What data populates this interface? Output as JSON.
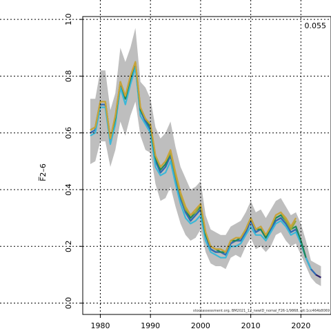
{
  "chart_data": {
    "type": "line",
    "title": "",
    "xlabel": "",
    "ylabel": "F̅2–6",
    "xlim": [
      1976.5,
      2026
    ],
    "ylim": [
      -0.04,
      1.01
    ],
    "x_ticks": [
      1980,
      1990,
      2000,
      2010,
      2020
    ],
    "y_ticks": [
      0.0,
      0.2,
      0.4,
      0.6,
      0.8,
      1.0
    ],
    "x_tick_labels": [
      "1980",
      "1990",
      "2000",
      "2010",
      "2020"
    ],
    "y_tick_labels": [
      "0.0",
      "0.2",
      "0.4",
      "0.6",
      "0.8",
      "1.0"
    ],
    "grid": true,
    "corner_value": "0.055",
    "source_text": "stockassessment.org, BM2021_12_newID_nomal_F26-1/9868, git:1cc464b8069",
    "band": {
      "color": "#bebebe",
      "x": [
        1978,
        1979,
        1980,
        1981,
        1982,
        1983,
        1984,
        1985,
        1986,
        1987,
        1988,
        1989,
        1990,
        1991,
        1992,
        1993,
        1994,
        1995,
        1996,
        1997,
        1998,
        1999,
        2000,
        2001,
        2002,
        2003,
        2004,
        2005,
        2006,
        2007,
        2008,
        2009,
        2010,
        2011,
        2012,
        2013,
        2014,
        2015,
        2016,
        2017,
        2018,
        2019,
        2020,
        2021,
        2022,
        2023,
        2024
      ],
      "upper": [
        0.72,
        0.72,
        0.82,
        0.82,
        0.68,
        0.74,
        0.9,
        0.85,
        0.9,
        0.97,
        0.78,
        0.76,
        0.72,
        0.62,
        0.58,
        0.6,
        0.64,
        0.55,
        0.48,
        0.44,
        0.4,
        0.41,
        0.43,
        0.31,
        0.26,
        0.25,
        0.24,
        0.24,
        0.27,
        0.28,
        0.29,
        0.32,
        0.36,
        0.32,
        0.33,
        0.3,
        0.33,
        0.36,
        0.37,
        0.34,
        0.31,
        0.32,
        0.28,
        0.22,
        0.15,
        0.14,
        0.13
      ],
      "lower": [
        0.49,
        0.5,
        0.57,
        0.57,
        0.48,
        0.54,
        0.64,
        0.59,
        0.66,
        0.71,
        0.59,
        0.54,
        0.53,
        0.42,
        0.36,
        0.37,
        0.41,
        0.34,
        0.28,
        0.24,
        0.22,
        0.23,
        0.26,
        0.18,
        0.14,
        0.13,
        0.13,
        0.12,
        0.16,
        0.17,
        0.16,
        0.2,
        0.23,
        0.19,
        0.2,
        0.18,
        0.2,
        0.24,
        0.25,
        0.22,
        0.2,
        0.21,
        0.17,
        0.13,
        0.09,
        0.07,
        0.06
      ]
    },
    "series": [
      {
        "color": "#2b1d6a",
        "x": [
          1978,
          1979,
          1980,
          1981,
          1982,
          1983,
          1984,
          1985,
          1986,
          1987,
          1988,
          1989,
          1990,
          1991,
          1992,
          1993,
          1994,
          1995,
          1996,
          1997,
          1998,
          1999,
          2000,
          2001,
          2002,
          2003,
          2004,
          2005,
          2006,
          2007,
          2008,
          2009,
          2010,
          2011,
          2012,
          2013,
          2014,
          2015,
          2016,
          2017,
          2018,
          2019,
          2020,
          2021,
          2022,
          2023,
          2024
        ],
        "values": [
          0.6,
          0.61,
          0.7,
          0.7,
          0.57,
          0.64,
          0.77,
          0.72,
          0.78,
          0.84,
          0.68,
          0.64,
          0.62,
          0.51,
          0.46,
          0.48,
          0.52,
          0.44,
          0.37,
          0.32,
          0.29,
          0.31,
          0.33,
          0.24,
          0.19,
          0.18,
          0.18,
          0.17,
          0.21,
          0.22,
          0.22,
          0.25,
          0.29,
          0.25,
          0.26,
          0.23,
          0.26,
          0.29,
          0.3,
          0.28,
          0.25,
          0.26,
          0.22,
          0.16,
          0.12,
          0.1,
          0.09
        ]
      },
      {
        "color": "#2f6db5",
        "x": [
          1978,
          1979,
          1980,
          1981,
          1982,
          1983,
          1984,
          1985,
          1986,
          1987,
          1988,
          1989,
          1990,
          1991,
          1992,
          1993,
          1994,
          1995,
          1996,
          1997,
          1998,
          1999,
          2000,
          2001,
          2002,
          2003,
          2004,
          2005,
          2006,
          2007,
          2008,
          2009,
          2010,
          2011,
          2012,
          2013,
          2014,
          2015,
          2016,
          2017,
          2018,
          2019,
          2020,
          2021,
          2022,
          2023
        ],
        "values": [
          0.6,
          0.61,
          0.7,
          0.7,
          0.57,
          0.64,
          0.77,
          0.72,
          0.78,
          0.84,
          0.68,
          0.64,
          0.61,
          0.5,
          0.46,
          0.48,
          0.52,
          0.44,
          0.37,
          0.32,
          0.29,
          0.31,
          0.33,
          0.24,
          0.19,
          0.18,
          0.18,
          0.17,
          0.21,
          0.22,
          0.22,
          0.25,
          0.29,
          0.25,
          0.26,
          0.23,
          0.26,
          0.29,
          0.3,
          0.28,
          0.25,
          0.26,
          0.21,
          0.16,
          0.12,
          0.1
        ]
      },
      {
        "color": "#3ab8d8",
        "x": [
          1978,
          1979,
          1980,
          1981,
          1982,
          1983,
          1984,
          1985,
          1986,
          1987,
          1988,
          1989,
          1990,
          1991,
          1992,
          1993,
          1994,
          1995,
          1996,
          1997,
          1998,
          1999,
          2000,
          2001,
          2002,
          2003,
          2004,
          2005,
          2006,
          2007,
          2008,
          2009,
          2010,
          2011,
          2012,
          2013,
          2014,
          2015,
          2016,
          2017,
          2018,
          2019,
          2020,
          2021,
          2022
        ],
        "values": [
          0.59,
          0.6,
          0.69,
          0.69,
          0.56,
          0.63,
          0.76,
          0.7,
          0.77,
          0.83,
          0.66,
          0.63,
          0.6,
          0.48,
          0.45,
          0.46,
          0.5,
          0.42,
          0.35,
          0.3,
          0.28,
          0.29,
          0.31,
          0.22,
          0.18,
          0.17,
          0.16,
          0.16,
          0.2,
          0.2,
          0.21,
          0.24,
          0.27,
          0.24,
          0.24,
          0.22,
          0.25,
          0.28,
          0.29,
          0.27,
          0.24,
          0.25,
          0.21,
          0.16,
          0.12
        ]
      },
      {
        "color": "#1d8a5a",
        "x": [
          1978,
          1979,
          1980,
          1981,
          1982,
          1983,
          1984,
          1985,
          1986,
          1987,
          1988,
          1989,
          1990,
          1991,
          1992,
          1993,
          1994,
          1995,
          1996,
          1997,
          1998,
          1999,
          2000,
          2001,
          2002,
          2003,
          2004,
          2005,
          2006,
          2007,
          2008,
          2009,
          2010,
          2011,
          2012,
          2013,
          2014,
          2015,
          2016,
          2017,
          2018,
          2019,
          2020,
          2021
        ],
        "values": [
          0.61,
          0.62,
          0.71,
          0.71,
          0.58,
          0.65,
          0.78,
          0.72,
          0.79,
          0.85,
          0.68,
          0.65,
          0.62,
          0.51,
          0.47,
          0.49,
          0.53,
          0.45,
          0.38,
          0.33,
          0.3,
          0.32,
          0.34,
          0.24,
          0.2,
          0.19,
          0.18,
          0.18,
          0.22,
          0.22,
          0.23,
          0.26,
          0.3,
          0.26,
          0.26,
          0.23,
          0.27,
          0.3,
          0.31,
          0.29,
          0.26,
          0.27,
          0.22,
          0.16
        ]
      },
      {
        "color": "#9aa83a",
        "x": [
          1978,
          1979,
          1980,
          1981,
          1982,
          1983,
          1984,
          1985,
          1986,
          1987,
          1988,
          1989,
          1990,
          1991,
          1992,
          1993,
          1994,
          1995,
          1996,
          1997,
          1998,
          1999,
          2000,
          2001,
          2002,
          2003,
          2004,
          2005,
          2006,
          2007,
          2008,
          2009,
          2010,
          2011,
          2012,
          2013,
          2014,
          2015,
          2016,
          2017,
          2018,
          2019
        ],
        "values": [
          0.61,
          0.62,
          0.71,
          0.71,
          0.58,
          0.66,
          0.78,
          0.73,
          0.8,
          0.85,
          0.69,
          0.65,
          0.63,
          0.52,
          0.48,
          0.5,
          0.53,
          0.45,
          0.38,
          0.33,
          0.31,
          0.32,
          0.35,
          0.25,
          0.2,
          0.19,
          0.19,
          0.18,
          0.22,
          0.23,
          0.23,
          0.26,
          0.3,
          0.26,
          0.27,
          0.24,
          0.27,
          0.31,
          0.32,
          0.29,
          0.26,
          0.29
        ]
      },
      {
        "color": "#c9a33a",
        "x": [
          1978,
          1979,
          1980,
          1981,
          1982,
          1983,
          1984,
          1985,
          1986,
          1987,
          1988,
          1989,
          1990,
          1991,
          1992,
          1993,
          1994,
          1995,
          1996,
          1997,
          1998,
          1999,
          2000,
          2001,
          2002,
          2003,
          2004,
          2005,
          2006,
          2007,
          2008,
          2009,
          2010,
          2011,
          2012,
          2013,
          2014,
          2015,
          2016,
          2017,
          2018,
          2019
        ],
        "values": [
          0.61,
          0.62,
          0.71,
          0.71,
          0.58,
          0.66,
          0.78,
          0.73,
          0.8,
          0.85,
          0.69,
          0.65,
          0.63,
          0.52,
          0.48,
          0.5,
          0.54,
          0.46,
          0.39,
          0.34,
          0.31,
          0.33,
          0.35,
          0.25,
          0.2,
          0.19,
          0.19,
          0.18,
          0.22,
          0.23,
          0.23,
          0.26,
          0.3,
          0.26,
          0.27,
          0.24,
          0.27,
          0.31,
          0.32,
          0.3,
          0.27,
          0.3
        ]
      }
    ]
  }
}
